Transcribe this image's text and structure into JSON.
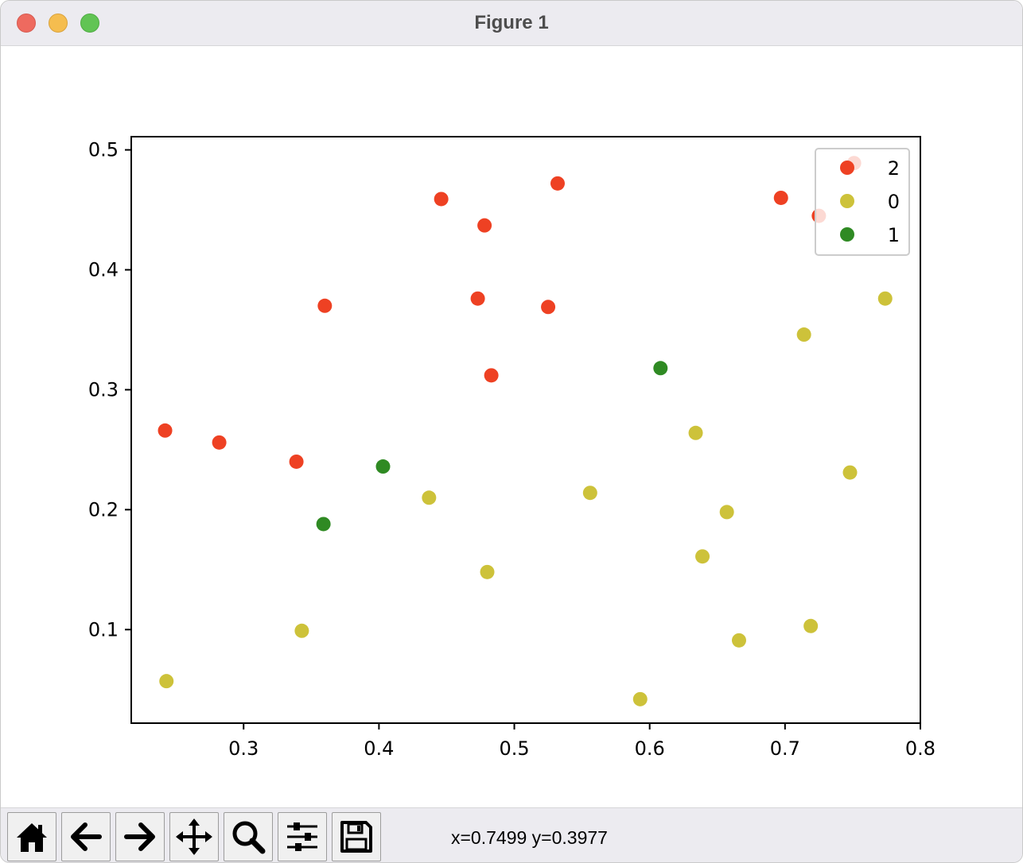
{
  "window": {
    "title": "Figure 1"
  },
  "toolbar": {
    "buttons": [
      {
        "name": "home-button",
        "icon": "home-icon"
      },
      {
        "name": "back-button",
        "icon": "arrow-left-icon"
      },
      {
        "name": "forward-button",
        "icon": "arrow-right-icon"
      },
      {
        "name": "pan-button",
        "icon": "move-icon"
      },
      {
        "name": "zoom-button",
        "icon": "magnifier-icon"
      },
      {
        "name": "configure-subplots-button",
        "icon": "sliders-icon"
      },
      {
        "name": "save-button",
        "icon": "floppy-disk-icon"
      }
    ],
    "status": "x=0.7499 y=0.3977"
  },
  "chart_data": {
    "type": "scatter",
    "title": "",
    "xlabel": "",
    "ylabel": "",
    "xlim": [
      0.217,
      0.8
    ],
    "ylim": [
      0.022,
      0.511
    ],
    "xticks": [
      "0.3",
      "0.4",
      "0.5",
      "0.6",
      "0.7",
      "0.8"
    ],
    "yticks": [
      "0.1",
      "0.2",
      "0.3",
      "0.4",
      "0.5"
    ],
    "grid": false,
    "legend": "top-right",
    "series": [
      {
        "name": "2",
        "color": "#ee4123",
        "points": [
          [
            0.446,
            0.459
          ],
          [
            0.532,
            0.472
          ],
          [
            0.478,
            0.437
          ],
          [
            0.697,
            0.46
          ],
          [
            0.725,
            0.445
          ],
          [
            0.751,
            0.489
          ],
          [
            0.36,
            0.37
          ],
          [
            0.473,
            0.376
          ],
          [
            0.525,
            0.369
          ],
          [
            0.483,
            0.312
          ],
          [
            0.242,
            0.266
          ],
          [
            0.282,
            0.256
          ],
          [
            0.339,
            0.24
          ]
        ]
      },
      {
        "name": "0",
        "color": "#cdc23a",
        "points": [
          [
            0.774,
            0.376
          ],
          [
            0.714,
            0.346
          ],
          [
            0.634,
            0.264
          ],
          [
            0.748,
            0.231
          ],
          [
            0.556,
            0.214
          ],
          [
            0.437,
            0.21
          ],
          [
            0.657,
            0.198
          ],
          [
            0.48,
            0.148
          ],
          [
            0.639,
            0.161
          ],
          [
            0.343,
            0.099
          ],
          [
            0.719,
            0.103
          ],
          [
            0.666,
            0.091
          ],
          [
            0.243,
            0.057
          ],
          [
            0.593,
            0.042
          ]
        ]
      },
      {
        "name": "1",
        "color": "#2f8a23",
        "points": [
          [
            0.608,
            0.318
          ],
          [
            0.403,
            0.236
          ],
          [
            0.359,
            0.188
          ]
        ]
      }
    ]
  }
}
